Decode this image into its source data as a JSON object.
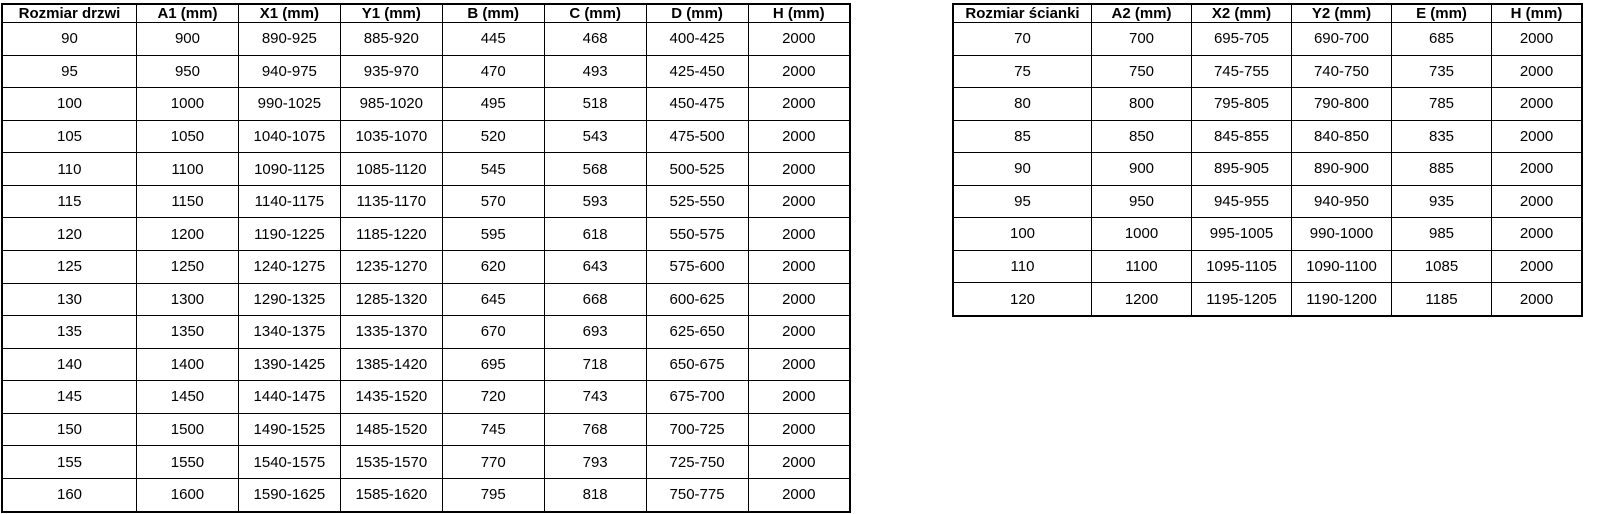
{
  "colors": {
    "background": "#ffffff",
    "border": "#000000",
    "text": "#000000"
  },
  "door_table": {
    "headers": [
      "Rozmiar drzwi",
      "A1 (mm)",
      "X1 (mm)",
      "Y1 (mm)",
      "B (mm)",
      "C (mm)",
      "D (mm)",
      "H (mm)"
    ],
    "rows": [
      [
        "90",
        "900",
        "890-925",
        "885-920",
        "445",
        "468",
        "400-425",
        "2000"
      ],
      [
        "95",
        "950",
        "940-975",
        "935-970",
        "470",
        "493",
        "425-450",
        "2000"
      ],
      [
        "100",
        "1000",
        "990-1025",
        "985-1020",
        "495",
        "518",
        "450-475",
        "2000"
      ],
      [
        "105",
        "1050",
        "1040-1075",
        "1035-1070",
        "520",
        "543",
        "475-500",
        "2000"
      ],
      [
        "110",
        "1100",
        "1090-1125",
        "1085-1120",
        "545",
        "568",
        "500-525",
        "2000"
      ],
      [
        "115",
        "1150",
        "1140-1175",
        "1135-1170",
        "570",
        "593",
        "525-550",
        "2000"
      ],
      [
        "120",
        "1200",
        "1190-1225",
        "1185-1220",
        "595",
        "618",
        "550-575",
        "2000"
      ],
      [
        "125",
        "1250",
        "1240-1275",
        "1235-1270",
        "620",
        "643",
        "575-600",
        "2000"
      ],
      [
        "130",
        "1300",
        "1290-1325",
        "1285-1320",
        "645",
        "668",
        "600-625",
        "2000"
      ],
      [
        "135",
        "1350",
        "1340-1375",
        "1335-1370",
        "670",
        "693",
        "625-650",
        "2000"
      ],
      [
        "140",
        "1400",
        "1390-1425",
        "1385-1420",
        "695",
        "718",
        "650-675",
        "2000"
      ],
      [
        "145",
        "1450",
        "1440-1475",
        "1435-1520",
        "720",
        "743",
        "675-700",
        "2000"
      ],
      [
        "150",
        "1500",
        "1490-1525",
        "1485-1520",
        "745",
        "768",
        "700-725",
        "2000"
      ],
      [
        "155",
        "1550",
        "1540-1575",
        "1535-1570",
        "770",
        "793",
        "725-750",
        "2000"
      ],
      [
        "160",
        "1600",
        "1590-1625",
        "1585-1620",
        "795",
        "818",
        "750-775",
        "2000"
      ]
    ]
  },
  "wall_table": {
    "headers": [
      "Rozmiar ścianki",
      "A2 (mm)",
      "X2 (mm)",
      "Y2 (mm)",
      "E (mm)",
      "H (mm)"
    ],
    "rows": [
      [
        "70",
        "700",
        "695-705",
        "690-700",
        "685",
        "2000"
      ],
      [
        "75",
        "750",
        "745-755",
        "740-750",
        "735",
        "2000"
      ],
      [
        "80",
        "800",
        "795-805",
        "790-800",
        "785",
        "2000"
      ],
      [
        "85",
        "850",
        "845-855",
        "840-850",
        "835",
        "2000"
      ],
      [
        "90",
        "900",
        "895-905",
        "890-900",
        "885",
        "2000"
      ],
      [
        "95",
        "950",
        "945-955",
        "940-950",
        "935",
        "2000"
      ],
      [
        "100",
        "1000",
        "995-1005",
        "990-1000",
        "985",
        "2000"
      ],
      [
        "110",
        "1100",
        "1095-1105",
        "1090-1100",
        "1085",
        "2000"
      ],
      [
        "120",
        "1200",
        "1195-1205",
        "1190-1200",
        "1185",
        "2000"
      ]
    ]
  }
}
